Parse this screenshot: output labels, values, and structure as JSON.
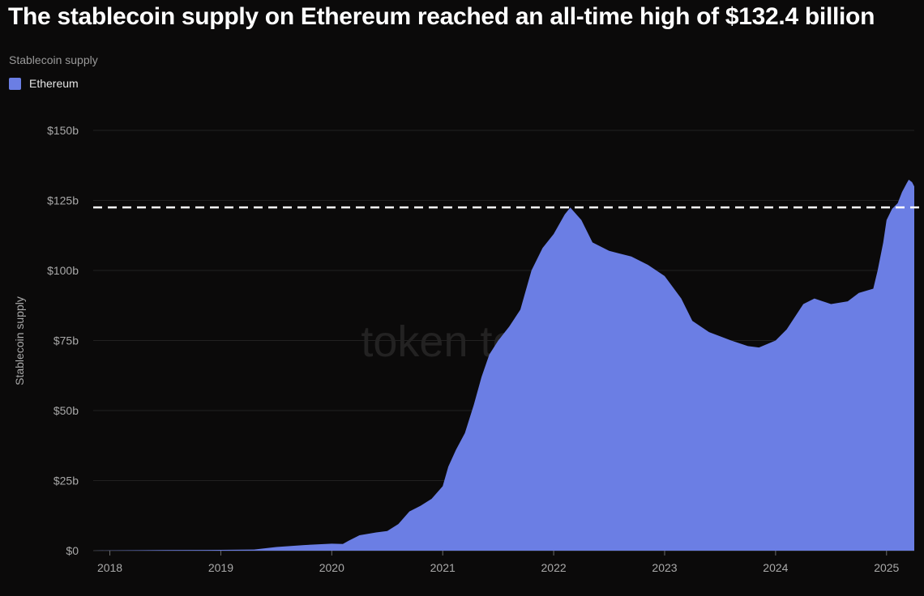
{
  "chart_data": {
    "type": "area",
    "title": "The stablecoin supply on Ethereum reached an all-time high of $132.4 billion",
    "subtitle": "Stablecoin supply",
    "ylabel": "Stablecoin supply",
    "xlabel": "",
    "watermark": "token terminal_",
    "colors": {
      "series": "#6b7ee4",
      "background": "#0b0a0a",
      "reference": "#ffffff"
    },
    "legend": {
      "position": "top-left"
    },
    "grid": true,
    "xlim": [
      2017.85,
      2025.25
    ],
    "ylim": [
      0,
      150
    ],
    "x_ticks": [
      {
        "value": 2018,
        "label": "2018"
      },
      {
        "value": 2019,
        "label": "2019"
      },
      {
        "value": 2020,
        "label": "2020"
      },
      {
        "value": 2021,
        "label": "2021"
      },
      {
        "value": 2022,
        "label": "2022"
      },
      {
        "value": 2023,
        "label": "2023"
      },
      {
        "value": 2024,
        "label": "2024"
      },
      {
        "value": 2025,
        "label": "2025"
      }
    ],
    "y_ticks": [
      {
        "value": 0,
        "label": "$0"
      },
      {
        "value": 25,
        "label": "$25b"
      },
      {
        "value": 50,
        "label": "$50b"
      },
      {
        "value": 75,
        "label": "$75b"
      },
      {
        "value": 100,
        "label": "$100b"
      },
      {
        "value": 125,
        "label": "$125b"
      },
      {
        "value": 150,
        "label": "$150b"
      }
    ],
    "reference_line": {
      "value": 122.5,
      "style": "dashed"
    },
    "series": [
      {
        "name": "Ethereum",
        "unit": "billion USD",
        "points": [
          [
            2017.85,
            0
          ],
          [
            2018.0,
            0.1
          ],
          [
            2018.5,
            0.2
          ],
          [
            2019.0,
            0.3
          ],
          [
            2019.3,
            0.4
          ],
          [
            2019.5,
            1.3
          ],
          [
            2019.75,
            2.0
          ],
          [
            2020.0,
            2.5
          ],
          [
            2020.1,
            2.4
          ],
          [
            2020.15,
            3.5
          ],
          [
            2020.25,
            5.5
          ],
          [
            2020.4,
            6.5
          ],
          [
            2020.5,
            7.0
          ],
          [
            2020.6,
            9.5
          ],
          [
            2020.7,
            14.0
          ],
          [
            2020.8,
            16.0
          ],
          [
            2020.9,
            18.5
          ],
          [
            2021.0,
            23.0
          ],
          [
            2021.05,
            30.0
          ],
          [
            2021.12,
            36.0
          ],
          [
            2021.2,
            42.0
          ],
          [
            2021.28,
            52.0
          ],
          [
            2021.35,
            62.0
          ],
          [
            2021.42,
            70.0
          ],
          [
            2021.5,
            75.0
          ],
          [
            2021.6,
            80.0
          ],
          [
            2021.7,
            86.0
          ],
          [
            2021.8,
            100.0
          ],
          [
            2021.9,
            108.0
          ],
          [
            2022.0,
            113.0
          ],
          [
            2022.1,
            120.0
          ],
          [
            2022.15,
            122.5
          ],
          [
            2022.25,
            118.0
          ],
          [
            2022.35,
            110.0
          ],
          [
            2022.5,
            107.0
          ],
          [
            2022.7,
            105.0
          ],
          [
            2022.85,
            102.0
          ],
          [
            2023.0,
            98.0
          ],
          [
            2023.15,
            90.0
          ],
          [
            2023.25,
            82.0
          ],
          [
            2023.4,
            78.0
          ],
          [
            2023.6,
            75.0
          ],
          [
            2023.75,
            73.0
          ],
          [
            2023.85,
            72.5
          ],
          [
            2024.0,
            75.0
          ],
          [
            2024.1,
            79.0
          ],
          [
            2024.25,
            88.0
          ],
          [
            2024.35,
            90.0
          ],
          [
            2024.5,
            88.0
          ],
          [
            2024.65,
            89.0
          ],
          [
            2024.75,
            92.0
          ],
          [
            2024.88,
            93.5
          ],
          [
            2024.92,
            100.0
          ],
          [
            2024.97,
            110.0
          ],
          [
            2025.0,
            118.0
          ],
          [
            2025.05,
            122.0
          ],
          [
            2025.1,
            124.0
          ],
          [
            2025.14,
            128.0
          ],
          [
            2025.18,
            131.0
          ],
          [
            2025.2,
            132.4
          ],
          [
            2025.23,
            131.5
          ],
          [
            2025.25,
            130.0
          ]
        ]
      }
    ]
  }
}
